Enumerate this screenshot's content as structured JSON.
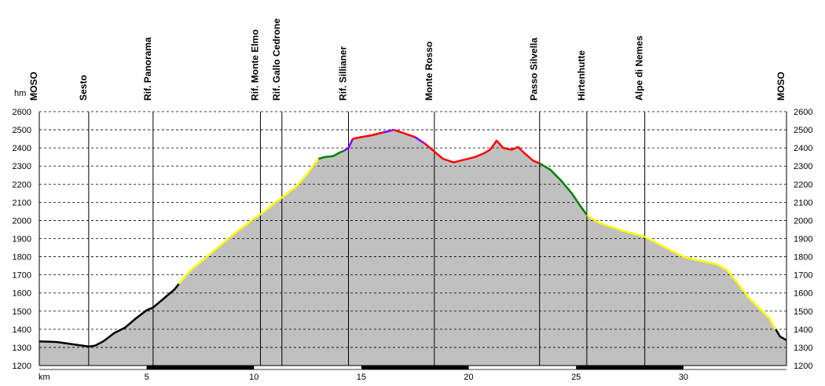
{
  "chart_data": {
    "type": "area",
    "ylabel": "hm",
    "xlabel": "km",
    "xlim": [
      0,
      34.8
    ],
    "ylim": [
      1200,
      2600
    ],
    "yticks": [
      1200,
      1300,
      1400,
      1500,
      1600,
      1700,
      1800,
      1900,
      2000,
      2100,
      2200,
      2300,
      2400,
      2500,
      2600
    ],
    "xticks": [
      5,
      10,
      15,
      20,
      25,
      30
    ],
    "grid": "horizontal-dashed",
    "fill_color": "#c0c0c0",
    "waypoints": [
      {
        "name": "MOSO",
        "km": 0
      },
      {
        "name": "Sesto",
        "km": 2.3
      },
      {
        "name": "Rif. Panorama",
        "km": 5.3
      },
      {
        "name": "Rif. Monte Elmo",
        "km": 10.3
      },
      {
        "name": "Rif. Gallo Cedrone",
        "km": 11.3
      },
      {
        "name": "Rif. Sillianer",
        "km": 14.4
      },
      {
        "name": "Monte Rosso",
        "km": 18.4
      },
      {
        "name": "Passo Silvella",
        "km": 23.3
      },
      {
        "name": "Hirtenhutte",
        "km": 25.5
      },
      {
        "name": "Alpe di Nemes",
        "km": 28.2
      },
      {
        "name": "MOSO",
        "km": 34.8
      }
    ],
    "profile": [
      [
        0,
        1333
      ],
      [
        0.8,
        1330
      ],
      [
        1.3,
        1322
      ],
      [
        1.8,
        1313
      ],
      [
        2.3,
        1305
      ],
      [
        2.6,
        1310
      ],
      [
        3,
        1335
      ],
      [
        3.5,
        1380
      ],
      [
        4,
        1410
      ],
      [
        4.5,
        1460
      ],
      [
        5,
        1505
      ],
      [
        5.3,
        1520
      ],
      [
        5.6,
        1550
      ],
      [
        6,
        1590
      ],
      [
        6.3,
        1620
      ],
      [
        6.5,
        1650
      ],
      [
        7,
        1720
      ],
      [
        8,
        1820
      ],
      [
        9,
        1920
      ],
      [
        10,
        2010
      ],
      [
        10.5,
        2050
      ],
      [
        11,
        2100
      ],
      [
        11.5,
        2145
      ],
      [
        12,
        2190
      ],
      [
        12.5,
        2260
      ],
      [
        13,
        2340
      ],
      [
        13.3,
        2350
      ],
      [
        13.7,
        2355
      ],
      [
        14,
        2375
      ],
      [
        14.2,
        2385
      ],
      [
        14.4,
        2400
      ],
      [
        14.6,
        2450
      ],
      [
        15,
        2460
      ],
      [
        15.5,
        2470
      ],
      [
        16,
        2485
      ],
      [
        16.2,
        2490
      ],
      [
        16.5,
        2500
      ],
      [
        17,
        2480
      ],
      [
        17.5,
        2460
      ],
      [
        18,
        2420
      ],
      [
        18.4,
        2380
      ],
      [
        18.8,
        2340
      ],
      [
        19.3,
        2320
      ],
      [
        19.8,
        2335
      ],
      [
        20.3,
        2350
      ],
      [
        20.7,
        2370
      ],
      [
        21,
        2390
      ],
      [
        21.3,
        2440
      ],
      [
        21.6,
        2400
      ],
      [
        22,
        2390
      ],
      [
        22.3,
        2405
      ],
      [
        22.6,
        2370
      ],
      [
        23,
        2330
      ],
      [
        23.3,
        2315
      ],
      [
        23.8,
        2280
      ],
      [
        24.3,
        2220
      ],
      [
        24.8,
        2150
      ],
      [
        25.2,
        2080
      ],
      [
        25.5,
        2030
      ],
      [
        26,
        1990
      ],
      [
        27,
        1950
      ],
      [
        28.2,
        1910
      ],
      [
        29,
        1860
      ],
      [
        29.5,
        1830
      ],
      [
        30,
        1800
      ],
      [
        30.5,
        1785
      ],
      [
        31.5,
        1760
      ],
      [
        32,
        1730
      ],
      [
        32.5,
        1660
      ],
      [
        33,
        1580
      ],
      [
        33.5,
        1520
      ],
      [
        34,
        1460
      ],
      [
        34.3,
        1400
      ],
      [
        34.5,
        1360
      ],
      [
        34.8,
        1340
      ]
    ],
    "segments": [
      {
        "from": 0,
        "to": 6.5,
        "color": "#000000"
      },
      {
        "from": 6.5,
        "to": 13.0,
        "color": "#ffff00"
      },
      {
        "from": 13.0,
        "to": 14.2,
        "color": "#008000"
      },
      {
        "from": 14.2,
        "to": 14.6,
        "color": "#8000ff"
      },
      {
        "from": 14.6,
        "to": 16.0,
        "color": "#ff0000"
      },
      {
        "from": 16.0,
        "to": 16.5,
        "color": "#8000ff"
      },
      {
        "from": 16.5,
        "to": 17.5,
        "color": "#ff0000"
      },
      {
        "from": 17.5,
        "to": 17.9,
        "color": "#8000ff"
      },
      {
        "from": 17.9,
        "to": 23.3,
        "color": "#ff0000"
      },
      {
        "from": 23.3,
        "to": 25.5,
        "color": "#008000"
      },
      {
        "from": 25.5,
        "to": 34.3,
        "color": "#ffff00"
      },
      {
        "from": 34.3,
        "to": 34.8,
        "color": "#000000"
      }
    ]
  }
}
